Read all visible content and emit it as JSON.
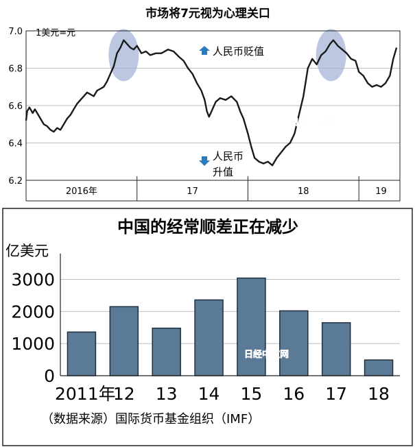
{
  "chart_data": [
    {
      "type": "line",
      "title": "市场将7元视为心理关口",
      "unit_label": "1美元=元",
      "ylim": [
        6.2,
        7.0
      ],
      "yticks": [
        "7.0",
        "6.8",
        "6.6",
        "6.4",
        "6.2"
      ],
      "ytick_values": [
        7.0,
        6.8,
        6.6,
        6.4,
        6.2
      ],
      "xlim": [
        2016.0,
        2019.37
      ],
      "x_period_labels": [
        "2016年",
        "17",
        "18",
        "19"
      ],
      "x_period_label_positions": [
        2016.5,
        2017.5,
        2018.5,
        2019.2
      ],
      "x_dividers": [
        2017.0,
        2018.0,
        2019.0
      ],
      "annotations": {
        "depreciation": "人民币贬值",
        "appreciation_line1": "人民币",
        "appreciation_line2": "升值"
      },
      "highlight_regions": [
        {
          "x_center": 2016.88,
          "y_center": 6.87
        },
        {
          "x_center": 2018.75,
          "y_center": 6.87
        }
      ],
      "series": [
        {
          "points": [
            [
              2016.0,
              6.52
            ],
            [
              2016.01,
              6.57
            ],
            [
              2016.03,
              6.59
            ],
            [
              2016.06,
              6.56
            ],
            [
              2016.08,
              6.58
            ],
            [
              2016.11,
              6.55
            ],
            [
              2016.13,
              6.53
            ],
            [
              2016.16,
              6.5
            ],
            [
              2016.19,
              6.49
            ],
            [
              2016.22,
              6.47
            ],
            [
              2016.25,
              6.46
            ],
            [
              2016.28,
              6.48
            ],
            [
              2016.31,
              6.47
            ],
            [
              2016.34,
              6.5
            ],
            [
              2016.37,
              6.53
            ],
            [
              2016.4,
              6.55
            ],
            [
              2016.43,
              6.58
            ],
            [
              2016.46,
              6.61
            ],
            [
              2016.49,
              6.63
            ],
            [
              2016.52,
              6.65
            ],
            [
              2016.55,
              6.67
            ],
            [
              2016.58,
              6.66
            ],
            [
              2016.61,
              6.65
            ],
            [
              2016.64,
              6.68
            ],
            [
              2016.67,
              6.69
            ],
            [
              2016.7,
              6.7
            ],
            [
              2016.73,
              6.73
            ],
            [
              2016.76,
              6.77
            ],
            [
              2016.79,
              6.81
            ],
            [
              2016.82,
              6.88
            ],
            [
              2016.85,
              6.91
            ],
            [
              2016.88,
              6.95
            ],
            [
              2016.91,
              6.93
            ],
            [
              2016.94,
              6.91
            ],
            [
              2016.97,
              6.9
            ],
            [
              2017.0,
              6.92
            ],
            [
              2017.04,
              6.88
            ],
            [
              2017.08,
              6.89
            ],
            [
              2017.12,
              6.87
            ],
            [
              2017.17,
              6.88
            ],
            [
              2017.22,
              6.88
            ],
            [
              2017.28,
              6.9
            ],
            [
              2017.33,
              6.89
            ],
            [
              2017.38,
              6.86
            ],
            [
              2017.42,
              6.84
            ],
            [
              2017.46,
              6.8
            ],
            [
              2017.5,
              6.77
            ],
            [
              2017.54,
              6.72
            ],
            [
              2017.58,
              6.68
            ],
            [
              2017.61,
              6.63
            ],
            [
              2017.63,
              6.57
            ],
            [
              2017.65,
              6.54
            ],
            [
              2017.68,
              6.58
            ],
            [
              2017.71,
              6.62
            ],
            [
              2017.75,
              6.64
            ],
            [
              2017.8,
              6.63
            ],
            [
              2017.85,
              6.65
            ],
            [
              2017.9,
              6.62
            ],
            [
              2017.93,
              6.57
            ],
            [
              2017.96,
              6.53
            ],
            [
              2018.0,
              6.45
            ],
            [
              2018.03,
              6.38
            ],
            [
              2018.06,
              6.32
            ],
            [
              2018.1,
              6.3
            ],
            [
              2018.14,
              6.29
            ],
            [
              2018.18,
              6.3
            ],
            [
              2018.22,
              6.28
            ],
            [
              2018.26,
              6.32
            ],
            [
              2018.3,
              6.35
            ],
            [
              2018.34,
              6.38
            ],
            [
              2018.38,
              6.4
            ],
            [
              2018.42,
              6.45
            ],
            [
              2018.46,
              6.55
            ],
            [
              2018.5,
              6.65
            ],
            [
              2018.54,
              6.8
            ],
            [
              2018.58,
              6.85
            ],
            [
              2018.62,
              6.82
            ],
            [
              2018.66,
              6.87
            ],
            [
              2018.7,
              6.89
            ],
            [
              2018.74,
              6.93
            ],
            [
              2018.77,
              6.95
            ],
            [
              2018.81,
              6.92
            ],
            [
              2018.85,
              6.9
            ],
            [
              2018.89,
              6.88
            ],
            [
              2018.93,
              6.85
            ],
            [
              2018.97,
              6.84
            ],
            [
              2019.0,
              6.78
            ],
            [
              2019.04,
              6.76
            ],
            [
              2019.08,
              6.72
            ],
            [
              2019.12,
              6.7
            ],
            [
              2019.16,
              6.71
            ],
            [
              2019.2,
              6.7
            ],
            [
              2019.24,
              6.72
            ],
            [
              2019.28,
              6.76
            ],
            [
              2019.31,
              6.85
            ],
            [
              2019.34,
              6.91
            ]
          ]
        }
      ]
    },
    {
      "type": "bar",
      "title": "中国的经常顺差正在减少",
      "ylabel": "亿美元",
      "ylim": [
        0,
        3800
      ],
      "yticks": [
        "3000",
        "2000",
        "1000",
        "0"
      ],
      "ytick_values": [
        3000,
        2000,
        1000,
        0
      ],
      "categories": [
        "2011年",
        "12",
        "13",
        "14",
        "15",
        "16",
        "17",
        "18"
      ],
      "values": [
        1360,
        2150,
        1480,
        2360,
        3040,
        2020,
        1650,
        490
      ],
      "source": "（数据来源）国际货币基金组织（IMF）"
    }
  ],
  "watermark": "日经中文网",
  "colors": {
    "line": "#1a1a1a",
    "bar_fill": "#5b7a96",
    "bar_stroke": "#1f2f3d",
    "highlight": "#9fb0d6",
    "arrow": "#2e7bbf",
    "grid": "#bdbdbd",
    "watermark": "#d77a5b"
  }
}
